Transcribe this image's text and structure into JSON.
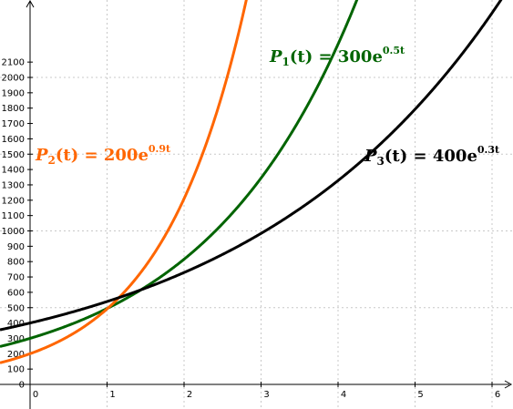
{
  "chart_data": {
    "type": "line",
    "grid": true,
    "xlim": [
      -0.45,
      6.2
    ],
    "ylim": [
      -100,
      2220
    ],
    "x_ticks": [
      0,
      1,
      2,
      3,
      4,
      5,
      6
    ],
    "y_ticks": [
      0,
      100,
      200,
      300,
      400,
      500,
      600,
      700,
      800,
      900,
      1000,
      1100,
      1200,
      1300,
      1400,
      1500,
      1600,
      1700,
      1800,
      1900,
      2000,
      2100
    ],
    "series": [
      {
        "name": "P_1(t) = 300e^{0.5t}",
        "a": 300,
        "k": 0.5,
        "color": "#006400",
        "label": {
          "P": "P",
          "sub": "1",
          "mid": "(t) = 300e",
          "sup": "0.5t"
        }
      },
      {
        "name": "P_2(t) = 200e^{0.9t}",
        "a": 200,
        "k": 0.9,
        "color": "#ff6600",
        "label": {
          "P": "P",
          "sub": "2",
          "mid": "(t) = 200e",
          "sup": "0.9t"
        }
      },
      {
        "name": "P_3(t) = 400e^{0.3t}",
        "a": 400,
        "k": 0.3,
        "color": "#000000",
        "label": {
          "P": "P",
          "sub": "3",
          "mid": "(t) = 400e",
          "sup": "0.3t"
        }
      }
    ]
  }
}
